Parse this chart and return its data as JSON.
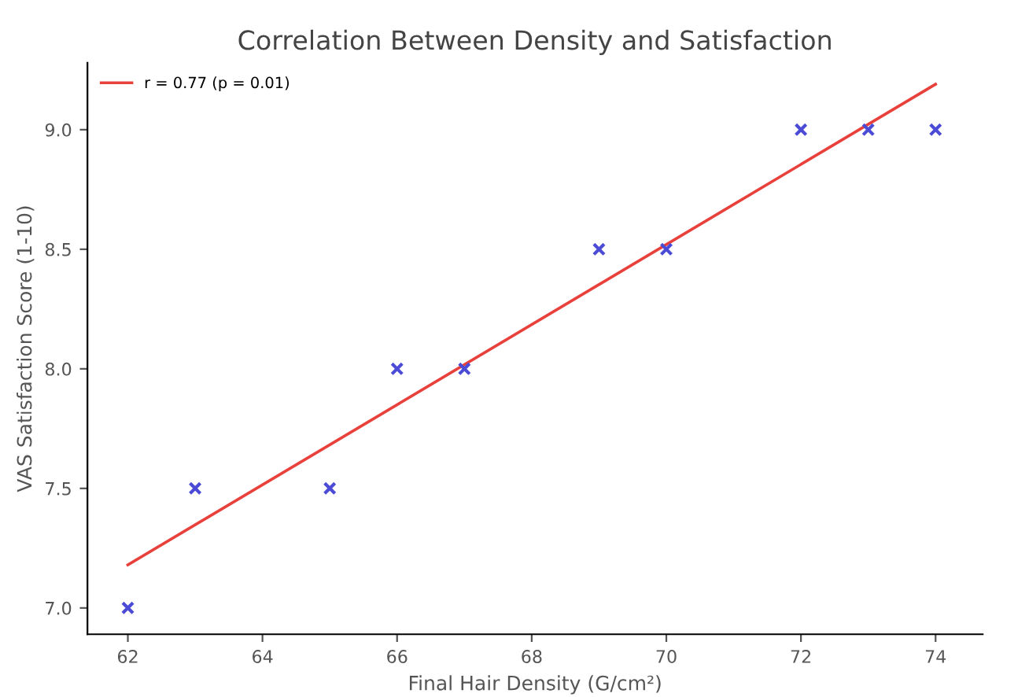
{
  "chart_data": {
    "type": "scatter",
    "title": "Correlation Between Density and Satisfaction",
    "xlabel": "Final Hair Density (G/cm²)",
    "ylabel": "VAS Satisfaction Score (1-10)",
    "series": [
      {
        "color": "#4b4bd6",
        "marker": "cross",
        "x": [
          62,
          63,
          65,
          66,
          67,
          69,
          70,
          72,
          73,
          74
        ],
        "values": [
          7.0,
          7.5,
          7.5,
          8.0,
          8.0,
          8.5,
          8.5,
          9.0,
          9.0,
          9.0
        ]
      },
      {
        "type": "line",
        "name": "r = 0.77 (p = 0.01)",
        "color": "#e8413c",
        "marker": "none",
        "line_style": "solid",
        "x": [
          62,
          74
        ],
        "values": [
          7.18,
          9.19
        ]
      }
    ],
    "xlim": [
      61.4,
      74.7
    ],
    "ylim": [
      6.89,
      9.28
    ],
    "xticks": [
      62,
      64,
      66,
      68,
      70,
      72,
      74
    ],
    "yticks": [
      {
        "value": 7.0,
        "label": "7.0"
      },
      {
        "value": 7.5,
        "label": "7.5"
      },
      {
        "value": 8.0,
        "label": "8.0"
      },
      {
        "value": 8.5,
        "label": "8.5"
      },
      {
        "value": 9.0,
        "label": "9.0"
      }
    ],
    "grid": false,
    "legend": "top left"
  }
}
